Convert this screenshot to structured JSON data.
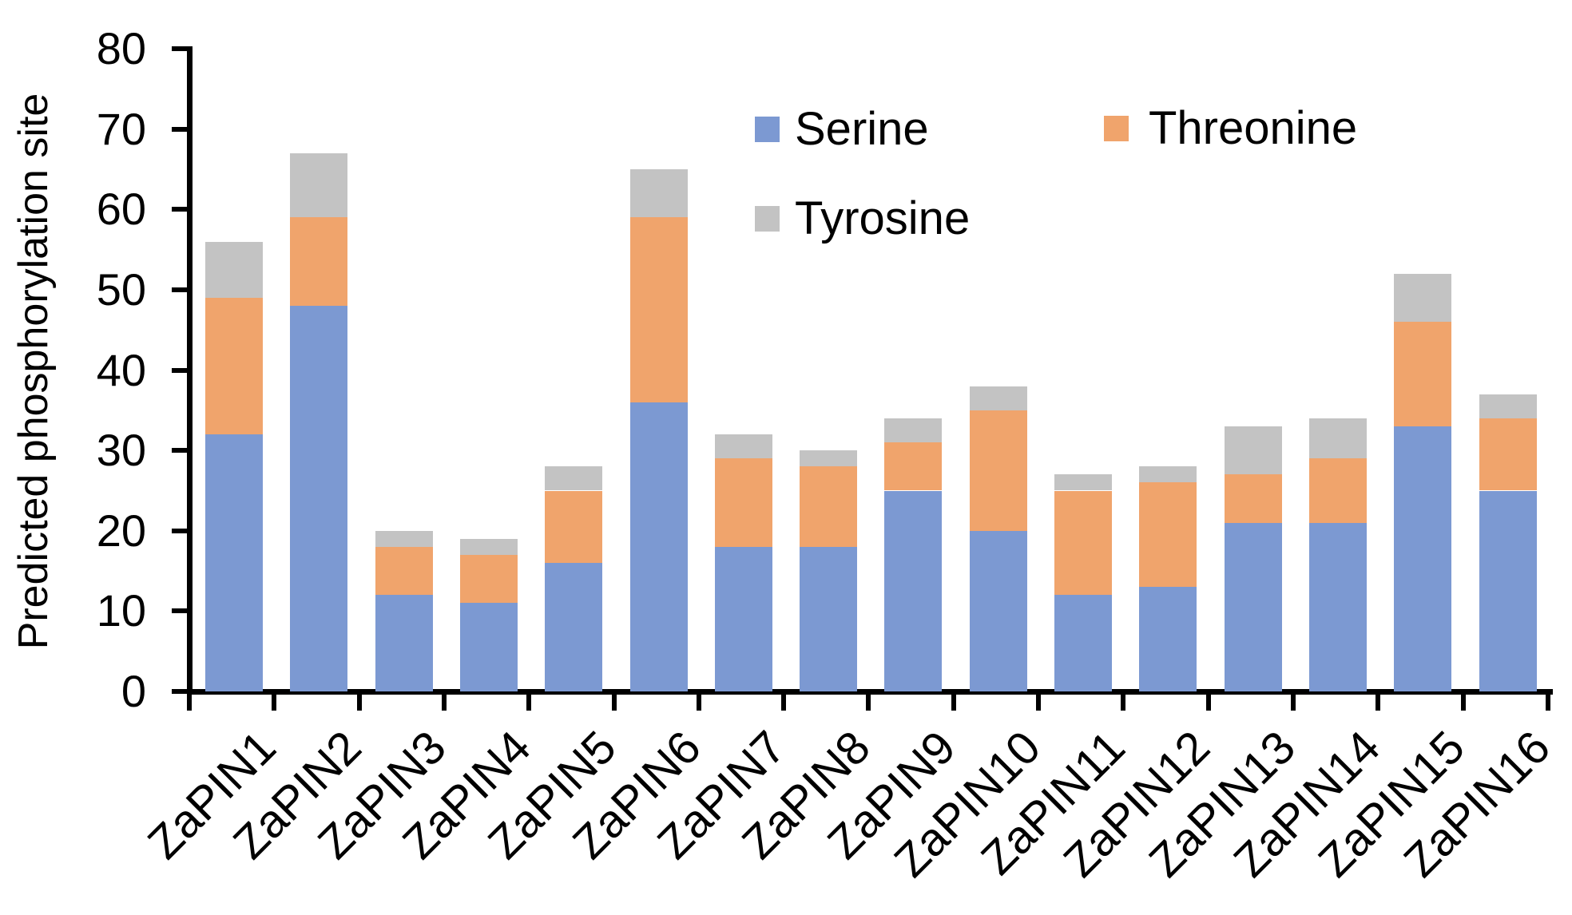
{
  "figure": {
    "y_axis_title": "Predicted phosphorylation site",
    "y_tick_labels": [
      "0",
      "10",
      "20",
      "30",
      "40",
      "50",
      "60",
      "70",
      "80"
    ],
    "colors": {
      "serine": "#7C99D2",
      "threonine": "#F0A46C",
      "tyrosine": "#C3C3C3",
      "axis": "#000000",
      "background": "#FFFFFF"
    }
  },
  "legend": {
    "items": [
      {
        "label": "Serine"
      },
      {
        "label": "Threonine"
      },
      {
        "label": "Tyrosine"
      }
    ]
  },
  "chart_data": {
    "type": "bar",
    "stacked": true,
    "title": "",
    "xlabel": "",
    "ylabel": "Predicted phosphorylation site",
    "ylim": [
      0,
      80
    ],
    "y_ticks": [
      0,
      10,
      20,
      30,
      40,
      50,
      60,
      70,
      80
    ],
    "grid": false,
    "legend_position": "top-right-inside",
    "categories": [
      "ZaPIN1",
      "ZaPIN2",
      "ZaPIN3",
      "ZaPIN4",
      "ZaPIN5",
      "ZaPIN6",
      "ZaPIN7",
      "ZaPIN8",
      "ZaPIN9",
      "ZaPIN10",
      "ZaPIN11",
      "ZaPIN12",
      "ZaPIN13",
      "ZaPIN14",
      "ZaPIN15",
      "ZaPIN16"
    ],
    "series": [
      {
        "name": "Serine",
        "color": "#7C99D2",
        "values": [
          32,
          48,
          12,
          11,
          16,
          36,
          18,
          18,
          25,
          20,
          12,
          13,
          21,
          21,
          33,
          25
        ]
      },
      {
        "name": "Threonine",
        "color": "#F0A46C",
        "values": [
          17,
          11,
          6,
          6,
          9,
          23,
          11,
          10,
          6,
          15,
          13,
          13,
          6,
          8,
          13,
          9
        ]
      },
      {
        "name": "Tyrosine",
        "color": "#C3C3C3",
        "values": [
          7,
          8,
          2,
          2,
          3,
          6,
          3,
          2,
          3,
          3,
          2,
          2,
          6,
          5,
          6,
          3
        ]
      }
    ],
    "totals": [
      56,
      67,
      20,
      19,
      28,
      65,
      32,
      30,
      34,
      38,
      27,
      28,
      33,
      34,
      52,
      37
    ]
  }
}
